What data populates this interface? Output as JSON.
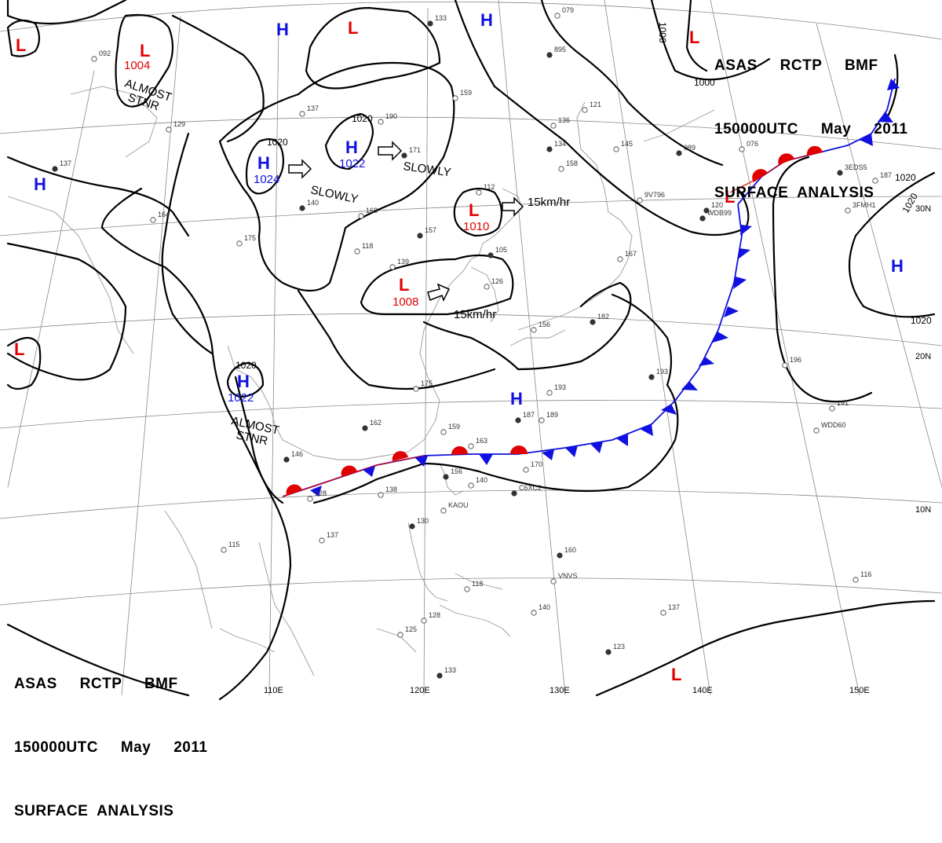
{
  "header": {
    "top_right": {
      "line1": "ASAS     RCTP     BMF",
      "line2": "150000UTC     May     2011",
      "line3": "SURFACE  ANALYSIS"
    },
    "bottom_left": {
      "line1": "ASAS     RCTP     BMF",
      "line2": "150000UTC     May     2011",
      "line3": "SURFACE  ANALYSIS"
    }
  },
  "colors": {
    "high": "#1010e0",
    "low": "#e00000",
    "isobar": "#000000",
    "grid": "#888888",
    "coast": "#999999",
    "warm_front": "#e00000",
    "cold_front": "#1010e0"
  },
  "longitude_labels": [
    "110E",
    "120E",
    "130E",
    "140E",
    "150E"
  ],
  "latitude_labels": [
    "30N",
    "20N",
    "10N"
  ],
  "pressure_systems": [
    {
      "type": "H",
      "pressure": "1024"
    },
    {
      "type": "H",
      "pressure": "1022"
    },
    {
      "type": "H",
      "pressure": "1022"
    },
    {
      "type": "H",
      "pressure": ""
    },
    {
      "type": "H",
      "pressure": ""
    },
    {
      "type": "H",
      "pressure": ""
    },
    {
      "type": "H",
      "pressure": ""
    },
    {
      "type": "H",
      "pressure": ""
    },
    {
      "type": "L",
      "pressure": "1004"
    },
    {
      "type": "L",
      "pressure": "1010"
    },
    {
      "type": "L",
      "pressure": "1008"
    },
    {
      "type": "L",
      "pressure": ""
    },
    {
      "type": "L",
      "pressure": ""
    },
    {
      "type": "L",
      "pressure": ""
    },
    {
      "type": "L",
      "pressure": ""
    },
    {
      "type": "L",
      "pressure": ""
    },
    {
      "type": "L",
      "pressure": ""
    }
  ],
  "isobar_labels": [
    "1020",
    "1020",
    "1020",
    "1020",
    "1000",
    "1000",
    "1020",
    "1020"
  ],
  "motion_notes": [
    "ALMOST",
    "STNR",
    "ALMOST",
    "STNR",
    "SLOWLY",
    "SLOWLY",
    "15km/hr",
    "15km/hr"
  ],
  "station_labels": [
    "133",
    "079",
    "092",
    "895",
    "159",
    "190",
    "171",
    "137",
    "129",
    "137",
    "164",
    "175",
    "140",
    "168",
    "118",
    "157",
    "139",
    "112",
    "105",
    "126",
    "136",
    "134",
    "121",
    "145",
    "089",
    "076",
    "187",
    "120",
    "158",
    "167",
    "182",
    "156",
    "196",
    "193",
    "191",
    "175",
    "162",
    "159",
    "163",
    "146",
    "128",
    "138",
    "156",
    "140",
    "170",
    "187",
    "189",
    "193",
    "130",
    "137",
    "115",
    "160",
    "118",
    "128",
    "133",
    "140",
    "137",
    "123",
    "116",
    "125",
    "WDB99",
    "WDD60",
    "KAOU",
    "C6XC2",
    "VNVS",
    "3FMH1",
    "3EDS5",
    "9V796"
  ]
}
